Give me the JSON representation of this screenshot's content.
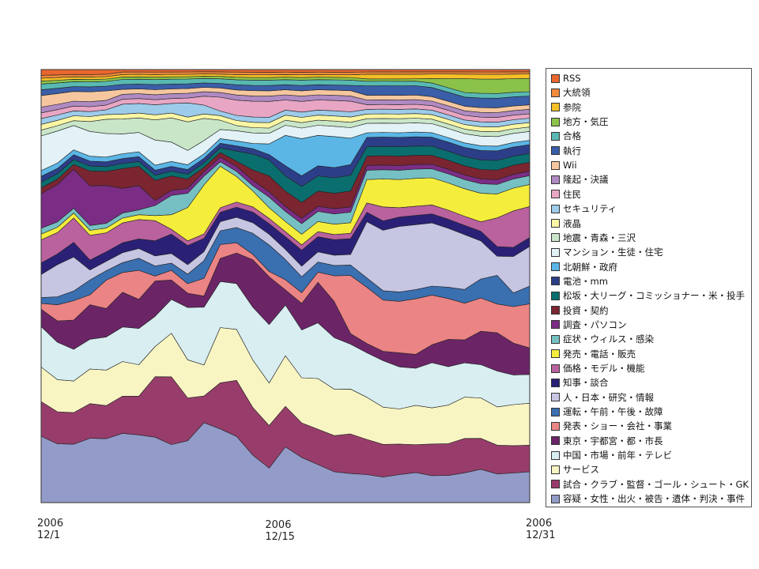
{
  "chart_data": {
    "type": "area",
    "stacked": true,
    "title": "",
    "xlabel": "",
    "ylabel": "",
    "x": [
      "2006-12-01",
      "2006-12-02",
      "2006-12-03",
      "2006-12-04",
      "2006-12-05",
      "2006-12-06",
      "2006-12-07",
      "2006-12-08",
      "2006-12-09",
      "2006-12-10",
      "2006-12-11",
      "2006-12-12",
      "2006-12-13",
      "2006-12-14",
      "2006-12-15",
      "2006-12-16",
      "2006-12-17",
      "2006-12-18",
      "2006-12-19",
      "2006-12-20",
      "2006-12-21",
      "2006-12-22",
      "2006-12-23",
      "2006-12-24",
      "2006-12-25",
      "2006-12-26",
      "2006-12-27",
      "2006-12-28",
      "2006-12-29",
      "2006-12-30",
      "2006-12-31"
    ],
    "xticks": [
      {
        "date": "2006-12-01",
        "year": "2006",
        "label": "12/1"
      },
      {
        "date": "2006-12-15",
        "year": "2006",
        "label": "12/15"
      },
      {
        "date": "2006-12-31",
        "year": "2006",
        "label": "12/31"
      }
    ],
    "normalized": true,
    "ylim": [
      0,
      1
    ],
    "grid": false,
    "legend_position": "right",
    "series": [
      {
        "name": "容疑・女性・出火・被告・遺体・判決・事件",
        "color": "#939bc8",
        "values": [
          0.115,
          0.11,
          0.12,
          0.13,
          0.135,
          0.14,
          0.14,
          0.13,
          0.12,
          0.13,
          0.18,
          0.16,
          0.13,
          0.09,
          0.065,
          0.11,
          0.085,
          0.075,
          0.06,
          0.055,
          0.06,
          0.055,
          0.06,
          0.065,
          0.06,
          0.06,
          0.065,
          0.07,
          0.06,
          0.065,
          0.07
        ]
      },
      {
        "name": "試合・クラブ・監督・ゴール・シュート・GK",
        "color": "#983d6b",
        "values": [
          0.06,
          0.06,
          0.065,
          0.07,
          0.07,
          0.075,
          0.08,
          0.12,
          0.14,
          0.09,
          0.06,
          0.1,
          0.11,
          0.09,
          0.08,
          0.08,
          0.065,
          0.07,
          0.07,
          0.075,
          0.075,
          0.07,
          0.065,
          0.06,
          0.07,
          0.07,
          0.075,
          0.065,
          0.06,
          0.06,
          0.06
        ]
      },
      {
        "name": "サービス",
        "color": "#f9f5c3",
        "values": [
          0.06,
          0.06,
          0.065,
          0.07,
          0.075,
          0.07,
          0.065,
          0.06,
          0.09,
          0.08,
          0.07,
          0.12,
          0.1,
          0.09,
          0.08,
          0.1,
          0.085,
          0.1,
          0.09,
          0.085,
          0.09,
          0.08,
          0.075,
          0.085,
          0.08,
          0.085,
          0.09,
          0.085,
          0.08,
          0.09,
          0.095
        ]
      },
      {
        "name": "中国・市場・前年・テレビ",
        "color": "#d8eef1",
        "values": [
          0.07,
          0.07,
          0.065,
          0.06,
          0.07,
          0.07,
          0.075,
          0.06,
          0.07,
          0.11,
          0.13,
          0.1,
          0.09,
          0.1,
          0.11,
          0.1,
          0.09,
          0.11,
          0.1,
          0.085,
          0.095,
          0.1,
          0.09,
          0.08,
          0.1,
          0.085,
          0.075,
          0.07,
          0.075,
          0.065,
          0.065
        ]
      },
      {
        "name": "東京・宇都宮・都・市長",
        "color": "#6b2567",
        "values": [
          0.03,
          0.04,
          0.06,
          0.07,
          0.06,
          0.07,
          0.06,
          0.07,
          0.04,
          0.03,
          0.025,
          0.05,
          0.06,
          0.09,
          0.09,
          0.03,
          0.05,
          0.08,
          0.07,
          0.02,
          0.02,
          0.02,
          0.03,
          0.03,
          0.04,
          0.06,
          0.05,
          0.07,
          0.08,
          0.07,
          0.06
        ]
      },
      {
        "name": "発表・ショー・会社・事業",
        "color": "#eb8484",
        "values": [
          0.01,
          0.03,
          0.04,
          0.02,
          0.06,
          0.04,
          0.06,
          0.01,
          0.02,
          0.02,
          0.04,
          0.03,
          0.02,
          0.01,
          0.01,
          0.02,
          0.02,
          0.02,
          0.05,
          0.11,
          0.12,
          0.11,
          0.11,
          0.12,
          0.11,
          0.09,
          0.08,
          0.07,
          0.06,
          0.08,
          0.1
        ]
      },
      {
        "name": "運転・午前・午後・故障",
        "color": "#3a6fb0",
        "values": [
          0.01,
          0.015,
          0.02,
          0.03,
          0.02,
          0.02,
          0.025,
          0.02,
          0.015,
          0.02,
          0.04,
          0.03,
          0.03,
          0.04,
          0.05,
          0.04,
          0.03,
          0.02,
          0.02,
          0.02,
          0.02,
          0.02,
          0.02,
          0.02,
          0.02,
          0.025,
          0.03,
          0.04,
          0.06,
          0.03,
          0.04
        ]
      },
      {
        "name": "人・日本・研究・情報",
        "color": "#c6c5e2",
        "values": [
          0.04,
          0.06,
          0.07,
          0.02,
          0.02,
          0.02,
          0.02,
          0.02,
          0.02,
          0.02,
          0.02,
          0.02,
          0.02,
          0.02,
          0.02,
          0.02,
          0.02,
          0.02,
          0.02,
          0.02,
          0.12,
          0.13,
          0.14,
          0.14,
          0.14,
          0.13,
          0.12,
          0.08,
          0.04,
          0.08,
          0.09
        ]
      },
      {
        "name": "知事・談合",
        "color": "#2a2176",
        "values": [
          0.02,
          0.02,
          0.03,
          0.02,
          0.02,
          0.02,
          0.02,
          0.03,
          0.04,
          0.04,
          0.03,
          0.02,
          0.02,
          0.02,
          0.02,
          0.025,
          0.03,
          0.03,
          0.03,
          0.03,
          0.02,
          0.02,
          0.02,
          0.02,
          0.02,
          0.02,
          0.02,
          0.02,
          0.02,
          0.02,
          0.02
        ]
      },
      {
        "name": "価格・モデル・機能",
        "color": "#b9629e",
        "values": [
          0.04,
          0.04,
          0.05,
          0.05,
          0.04,
          0.04,
          0.04,
          0.04,
          0.01,
          0.01,
          0.01,
          0.01,
          0.01,
          0.01,
          0.01,
          0.01,
          0.01,
          0.01,
          0.01,
          0.01,
          0.02,
          0.03,
          0.02,
          0.02,
          0.02,
          0.02,
          0.02,
          0.02,
          0.06,
          0.08,
          0.07
        ]
      },
      {
        "name": "発売・電話・販売",
        "color": "#f5ed3b",
        "values": [
          0.01,
          0.01,
          0.01,
          0.01,
          0.01,
          0.01,
          0.01,
          0.01,
          0.03,
          0.07,
          0.11,
          0.09,
          0.05,
          0.03,
          0.02,
          0.02,
          0.02,
          0.02,
          0.02,
          0.02,
          0.05,
          0.06,
          0.06,
          0.06,
          0.06,
          0.06,
          0.06,
          0.06,
          0.05,
          0.05,
          0.05
        ]
      },
      {
        "name": "症状・ウィルス・感染",
        "color": "#76c0c3",
        "values": [
          0.01,
          0.01,
          0.01,
          0.01,
          0.01,
          0.01,
          0.01,
          0.02,
          0.04,
          0.03,
          0.02,
          0.01,
          0.01,
          0.01,
          0.02,
          0.02,
          0.02,
          0.02,
          0.02,
          0.02,
          0.02,
          0.02,
          0.02,
          0.02,
          0.02,
          0.02,
          0.02,
          0.02,
          0.02,
          0.02,
          0.02
        ]
      },
      {
        "name": "調査・パソコン",
        "color": "#7b2d85",
        "values": [
          0.06,
          0.07,
          0.08,
          0.08,
          0.08,
          0.05,
          0.05,
          0.01,
          0.01,
          0.01,
          0.01,
          0.01,
          0.01,
          0.01,
          0.01,
          0.01,
          0.01,
          0.01,
          0.01,
          0.01,
          0.01,
          0.01,
          0.01,
          0.01,
          0.01,
          0.01,
          0.01,
          0.01,
          0.01,
          0.01,
          0.01
        ]
      },
      {
        "name": "投資・契約",
        "color": "#7b2530",
        "values": [
          0.01,
          0.01,
          0.01,
          0.03,
          0.03,
          0.04,
          0.04,
          0.04,
          0.03,
          0.02,
          0.01,
          0.01,
          0.01,
          0.02,
          0.03,
          0.03,
          0.03,
          0.03,
          0.03,
          0.03,
          0.02,
          0.02,
          0.02,
          0.02,
          0.02,
          0.02,
          0.02,
          0.02,
          0.02,
          0.02,
          0.02
        ]
      },
      {
        "name": "松坂・大リーグ・コミッショナー・米・投手",
        "color": "#0a6e6e",
        "values": [
          0.01,
          0.01,
          0.01,
          0.01,
          0.01,
          0.01,
          0.01,
          0.01,
          0.01,
          0.01,
          0.01,
          0.01,
          0.02,
          0.03,
          0.03,
          0.03,
          0.03,
          0.03,
          0.03,
          0.03,
          0.02,
          0.02,
          0.02,
          0.02,
          0.02,
          0.02,
          0.02,
          0.02,
          0.02,
          0.02,
          0.02
        ]
      },
      {
        "name": "電池・mm",
        "color": "#2d3e88",
        "values": [
          0.01,
          0.01,
          0.01,
          0.01,
          0.01,
          0.01,
          0.01,
          0.01,
          0.01,
          0.01,
          0.01,
          0.01,
          0.01,
          0.01,
          0.01,
          0.02,
          0.02,
          0.02,
          0.02,
          0.02,
          0.02,
          0.02,
          0.02,
          0.02,
          0.02,
          0.02,
          0.02,
          0.02,
          0.02,
          0.02,
          0.02
        ]
      },
      {
        "name": "北朝鮮・政府",
        "color": "#5bb6e6",
        "values": [
          0.01,
          0.01,
          0.01,
          0.01,
          0.01,
          0.01,
          0.01,
          0.01,
          0.01,
          0.01,
          0.01,
          0.01,
          0.01,
          0.01,
          0.02,
          0.06,
          0.07,
          0.06,
          0.06,
          0.05,
          0.01,
          0.01,
          0.01,
          0.01,
          0.01,
          0.01,
          0.01,
          0.01,
          0.01,
          0.01,
          0.01
        ]
      },
      {
        "name": "マンション・生徒・住宅",
        "color": "#e2f2f6",
        "values": [
          0.06,
          0.06,
          0.05,
          0.05,
          0.05,
          0.04,
          0.04,
          0.05,
          0.04,
          0.03,
          0.03,
          0.02,
          0.02,
          0.02,
          0.02,
          0.02,
          0.02,
          0.02,
          0.02,
          0.02,
          0.02,
          0.02,
          0.02,
          0.02,
          0.02,
          0.02,
          0.02,
          0.02,
          0.02,
          0.02,
          0.02
        ]
      },
      {
        "name": "地震・青森・三沢",
        "color": "#c9e6c9",
        "values": [
          0.01,
          0.01,
          0.01,
          0.02,
          0.03,
          0.03,
          0.03,
          0.04,
          0.05,
          0.06,
          0.05,
          0.02,
          0.01,
          0.01,
          0.01,
          0.01,
          0.01,
          0.01,
          0.01,
          0.01,
          0.01,
          0.01,
          0.01,
          0.01,
          0.01,
          0.01,
          0.01,
          0.01,
          0.01,
          0.01,
          0.01
        ]
      },
      {
        "name": "液晶",
        "color": "#fbf6a4",
        "values": [
          0.01,
          0.01,
          0.01,
          0.01,
          0.01,
          0.01,
          0.01,
          0.01,
          0.01,
          0.01,
          0.01,
          0.01,
          0.01,
          0.01,
          0.01,
          0.01,
          0.01,
          0.01,
          0.01,
          0.01,
          0.01,
          0.01,
          0.01,
          0.01,
          0.01,
          0.01,
          0.01,
          0.01,
          0.01,
          0.01,
          0.01
        ]
      },
      {
        "name": "セキュリティ",
        "color": "#9dcbea",
        "values": [
          0.01,
          0.01,
          0.01,
          0.01,
          0.01,
          0.02,
          0.02,
          0.02,
          0.02,
          0.03,
          0.02,
          0.01,
          0.01,
          0.01,
          0.01,
          0.01,
          0.01,
          0.01,
          0.01,
          0.01,
          0.01,
          0.01,
          0.01,
          0.01,
          0.01,
          0.01,
          0.01,
          0.01,
          0.01,
          0.01,
          0.01
        ]
      },
      {
        "name": "住民",
        "color": "#e8a6c4",
        "values": [
          0.01,
          0.01,
          0.01,
          0.01,
          0.01,
          0.01,
          0.01,
          0.01,
          0.01,
          0.01,
          0.02,
          0.03,
          0.03,
          0.03,
          0.03,
          0.02,
          0.02,
          0.02,
          0.02,
          0.02,
          0.01,
          0.01,
          0.01,
          0.01,
          0.01,
          0.01,
          0.01,
          0.01,
          0.01,
          0.01,
          0.01
        ]
      },
      {
        "name": "隆起・決議",
        "color": "#b08ac2",
        "values": [
          0.01,
          0.01,
          0.01,
          0.01,
          0.01,
          0.01,
          0.01,
          0.01,
          0.01,
          0.01,
          0.01,
          0.01,
          0.01,
          0.01,
          0.01,
          0.01,
          0.01,
          0.01,
          0.01,
          0.01,
          0.01,
          0.01,
          0.01,
          0.01,
          0.01,
          0.01,
          0.01,
          0.01,
          0.01,
          0.01,
          0.01
        ]
      },
      {
        "name": "Wii",
        "color": "#f6c79f",
        "values": [
          0.02,
          0.02,
          0.02,
          0.02,
          0.02,
          0.01,
          0.01,
          0.01,
          0.01,
          0.01,
          0.01,
          0.01,
          0.01,
          0.01,
          0.01,
          0.01,
          0.01,
          0.01,
          0.01,
          0.01,
          0.01,
          0.01,
          0.01,
          0.01,
          0.01,
          0.01,
          0.01,
          0.01,
          0.01,
          0.01,
          0.01
        ]
      },
      {
        "name": "執行",
        "color": "#3a5ea8",
        "values": [
          0.01,
          0.01,
          0.01,
          0.01,
          0.01,
          0.01,
          0.01,
          0.01,
          0.01,
          0.01,
          0.01,
          0.01,
          0.01,
          0.01,
          0.01,
          0.01,
          0.01,
          0.01,
          0.01,
          0.01,
          0.02,
          0.02,
          0.02,
          0.02,
          0.02,
          0.02,
          0.02,
          0.02,
          0.02,
          0.02,
          0.02
        ]
      },
      {
        "name": "合格",
        "color": "#58b9b2",
        "values": [
          0.01,
          0.01,
          0.01,
          0.01,
          0.01,
          0.01,
          0.01,
          0.01,
          0.01,
          0.01,
          0.01,
          0.01,
          0.01,
          0.01,
          0.01,
          0.01,
          0.01,
          0.01,
          0.01,
          0.01,
          0.01,
          0.01,
          0.01,
          0.01,
          0.01,
          0.01,
          0.01,
          0.01,
          0.01,
          0.01,
          0.01
        ]
      },
      {
        "name": "地方・気圧",
        "color": "#8bc34a",
        "values": [
          0.005,
          0.005,
          0.005,
          0.005,
          0.005,
          0.005,
          0.005,
          0.005,
          0.005,
          0.005,
          0.005,
          0.005,
          0.005,
          0.005,
          0.005,
          0.005,
          0.005,
          0.005,
          0.005,
          0.005,
          0.005,
          0.005,
          0.005,
          0.005,
          0.01,
          0.02,
          0.03,
          0.03,
          0.03,
          0.03,
          0.03
        ]
      },
      {
        "name": "参院",
        "color": "#f6c026",
        "values": [
          0.005,
          0.005,
          0.005,
          0.005,
          0.005,
          0.005,
          0.005,
          0.005,
          0.005,
          0.005,
          0.005,
          0.005,
          0.005,
          0.005,
          0.005,
          0.005,
          0.005,
          0.005,
          0.005,
          0.005,
          0.01,
          0.01,
          0.01,
          0.01,
          0.01,
          0.01,
          0.01,
          0.01,
          0.01,
          0.01,
          0.01
        ]
      },
      {
        "name": "大統領",
        "color": "#f08a3c",
        "values": [
          0.005,
          0.005,
          0.005,
          0.005,
          0.005,
          0.005,
          0.005,
          0.005,
          0.005,
          0.005,
          0.005,
          0.005,
          0.005,
          0.005,
          0.005,
          0.005,
          0.005,
          0.005,
          0.005,
          0.005,
          0.005,
          0.005,
          0.005,
          0.005,
          0.005,
          0.005,
          0.005,
          0.005,
          0.005,
          0.005,
          0.005
        ]
      },
      {
        "name": "RSS",
        "color": "#e9672f",
        "values": [
          0.01,
          0.01,
          0.01,
          0.01,
          0.01,
          0.005,
          0.005,
          0.005,
          0.005,
          0.005,
          0.005,
          0.005,
          0.005,
          0.005,
          0.005,
          0.005,
          0.005,
          0.005,
          0.005,
          0.005,
          0.005,
          0.005,
          0.005,
          0.005,
          0.005,
          0.005,
          0.005,
          0.005,
          0.005,
          0.005,
          0.005
        ]
      }
    ]
  }
}
